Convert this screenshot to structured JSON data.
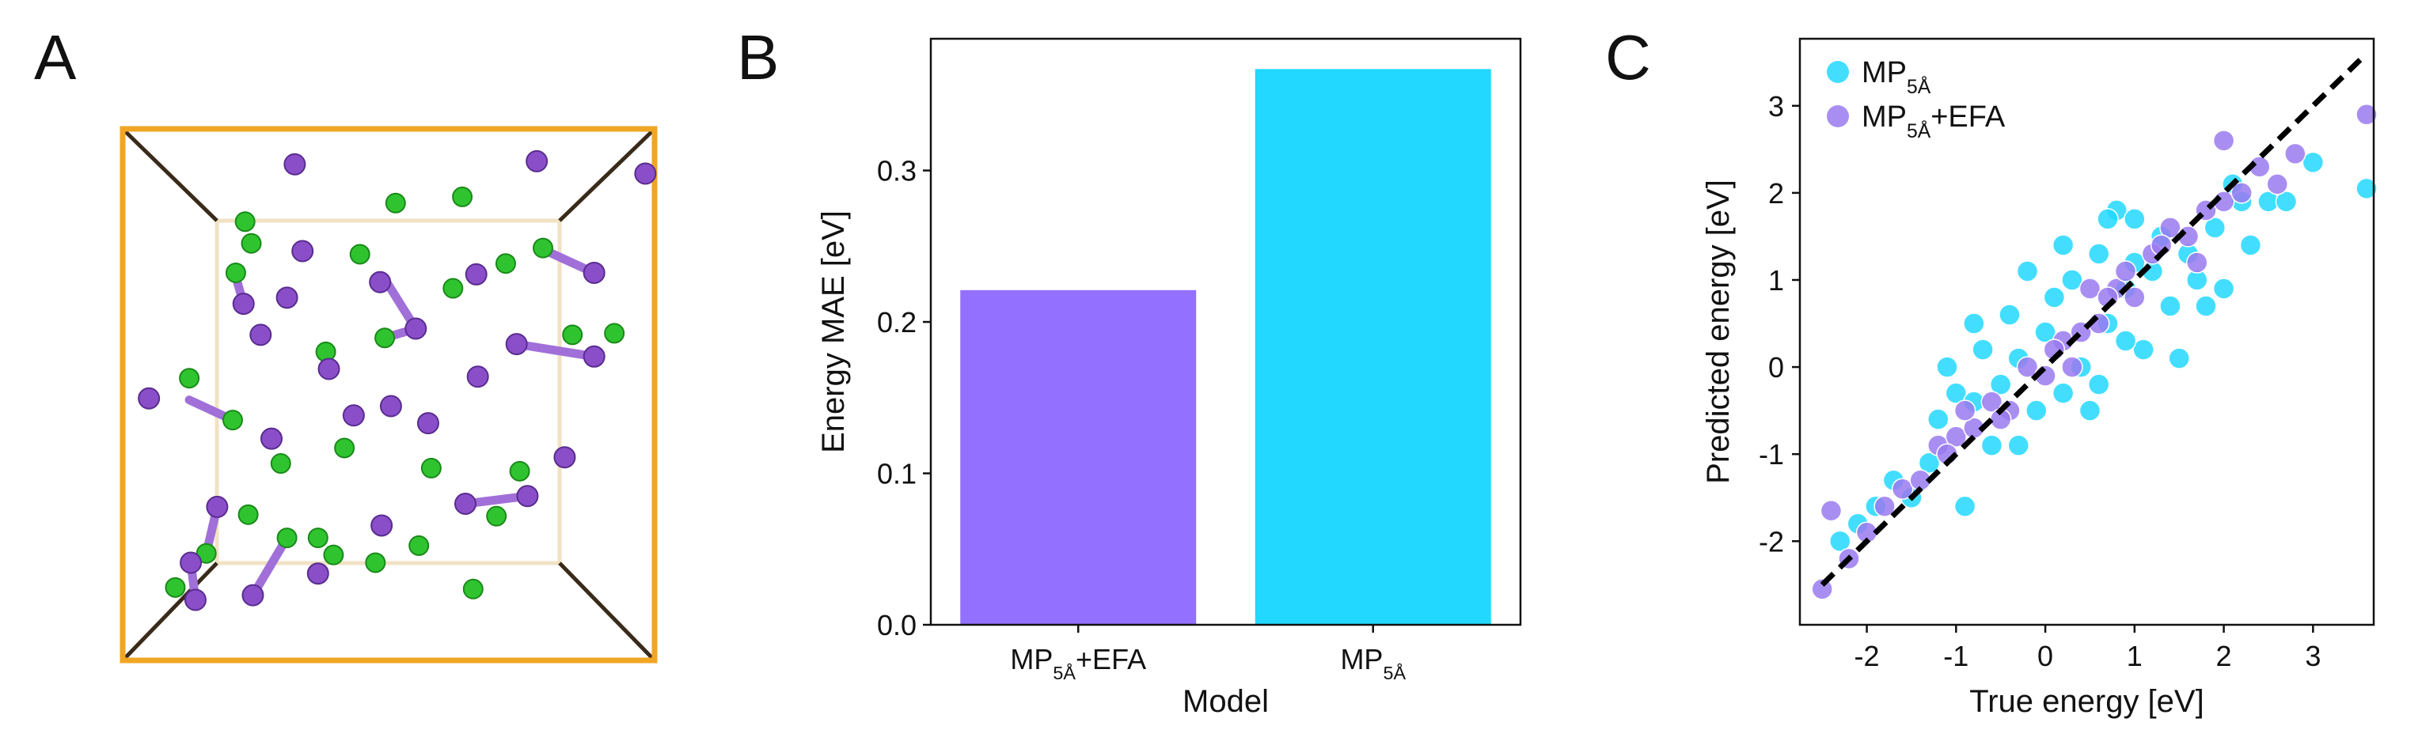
{
  "panel_labels": [
    "A",
    "B",
    "C"
  ],
  "chart_data": [
    {
      "type": "bar",
      "categories": [
        [
          {
            "text": "MP"
          },
          {
            "text": "5Å",
            "sub": true
          },
          {
            "text": "+EFA"
          }
        ],
        [
          {
            "text": "MP"
          },
          {
            "text": "5Å",
            "sub": true
          }
        ]
      ],
      "values": [
        0.221,
        0.367
      ],
      "colors": [
        "#9370ff",
        "#22d8ff"
      ],
      "xlabel": "Model",
      "ylabel": "Energy MAE [eV]",
      "ylim": [
        0,
        0.387
      ],
      "yticks": [
        {
          "value": 0,
          "label": "0.0"
        },
        0.1,
        0.2,
        0.3
      ]
    },
    {
      "type": "scatter",
      "xlabel": "True energy [eV]",
      "ylabel": "Predicted energy [eV]",
      "xlim": [
        -2.75,
        3.68
      ],
      "ylim": [
        -2.96,
        3.77
      ],
      "xticks": [
        -2,
        -1,
        0,
        1,
        2,
        3
      ],
      "yticks": [
        -2,
        -1,
        0,
        1,
        2,
        3
      ],
      "legend": "upper left",
      "reference_line": {
        "x": [
          -2.5,
          3.55
        ],
        "y": [
          -2.5,
          3.55
        ],
        "color": "#000000"
      },
      "series": [
        {
          "name": [
            {
              "text": "MP"
            },
            {
              "text": "5Å",
              "sub": true
            }
          ],
          "color": "#22d8ff",
          "x": [
            -2.3,
            -2.1,
            -1.9,
            -1.7,
            -1.5,
            -1.3,
            -1.2,
            -1.0,
            -0.9,
            -0.8,
            -0.7,
            -0.6,
            -0.5,
            -0.4,
            -0.3,
            -0.2,
            -0.1,
            0.0,
            0.1,
            0.2,
            0.3,
            0.4,
            0.5,
            0.6,
            0.7,
            0.8,
            0.9,
            1.0,
            1.1,
            1.2,
            1.3,
            1.4,
            1.5,
            1.6,
            1.7,
            1.8,
            1.9,
            2.0,
            2.1,
            2.2,
            2.3,
            2.5,
            2.7,
            3.0,
            3.6,
            -0.8,
            -0.3,
            0.2,
            0.6,
            1.0,
            -1.1,
            0.9,
            0.7
          ],
          "values": [
            -2.0,
            -1.8,
            -1.6,
            -1.3,
            -1.5,
            -1.1,
            -0.6,
            -0.3,
            -1.6,
            -0.4,
            0.2,
            -0.9,
            -0.2,
            0.6,
            0.1,
            1.1,
            -0.5,
            0.4,
            0.8,
            -0.3,
            1.0,
            0.0,
            -0.5,
            1.3,
            0.5,
            1.8,
            0.9,
            1.7,
            0.2,
            1.1,
            1.5,
            0.7,
            0.1,
            1.3,
            1.0,
            0.7,
            1.6,
            0.9,
            2.1,
            1.9,
            1.4,
            1.9,
            1.9,
            2.35,
            2.05,
            0.5,
            -0.9,
            1.4,
            -0.2,
            1.2,
            0.0,
            0.3,
            1.7
          ]
        },
        {
          "name": [
            {
              "text": "MP"
            },
            {
              "text": "5Å",
              "sub": true
            },
            {
              "text": "+EFA"
            }
          ],
          "color": "#9a7af0",
          "x": [
            -2.5,
            -2.4,
            -2.2,
            -2.0,
            -1.8,
            -1.6,
            -1.4,
            -1.2,
            -1.0,
            -0.8,
            -0.6,
            -0.4,
            -0.2,
            0.0,
            0.2,
            0.4,
            0.6,
            0.8,
            1.0,
            1.2,
            1.4,
            1.6,
            1.8,
            2.0,
            2.2,
            2.4,
            2.6,
            2.8,
            3.6,
            -1.1,
            -0.5,
            0.1,
            0.5,
            0.9,
            1.3,
            1.7,
            2.0,
            -0.9,
            0.3,
            0.7
          ],
          "values": [
            -2.55,
            -1.65,
            -2.2,
            -1.9,
            -1.6,
            -1.4,
            -1.3,
            -0.9,
            -0.8,
            -0.7,
            -0.4,
            -0.5,
            0.0,
            -0.1,
            0.3,
            0.4,
            0.5,
            0.9,
            0.8,
            1.3,
            1.6,
            1.5,
            1.8,
            1.9,
            2.0,
            2.3,
            2.1,
            2.45,
            2.9,
            -1.0,
            -0.6,
            0.2,
            0.9,
            1.1,
            1.4,
            1.2,
            2.6,
            -0.5,
            0.0,
            0.8
          ]
        }
      ]
    }
  ]
}
